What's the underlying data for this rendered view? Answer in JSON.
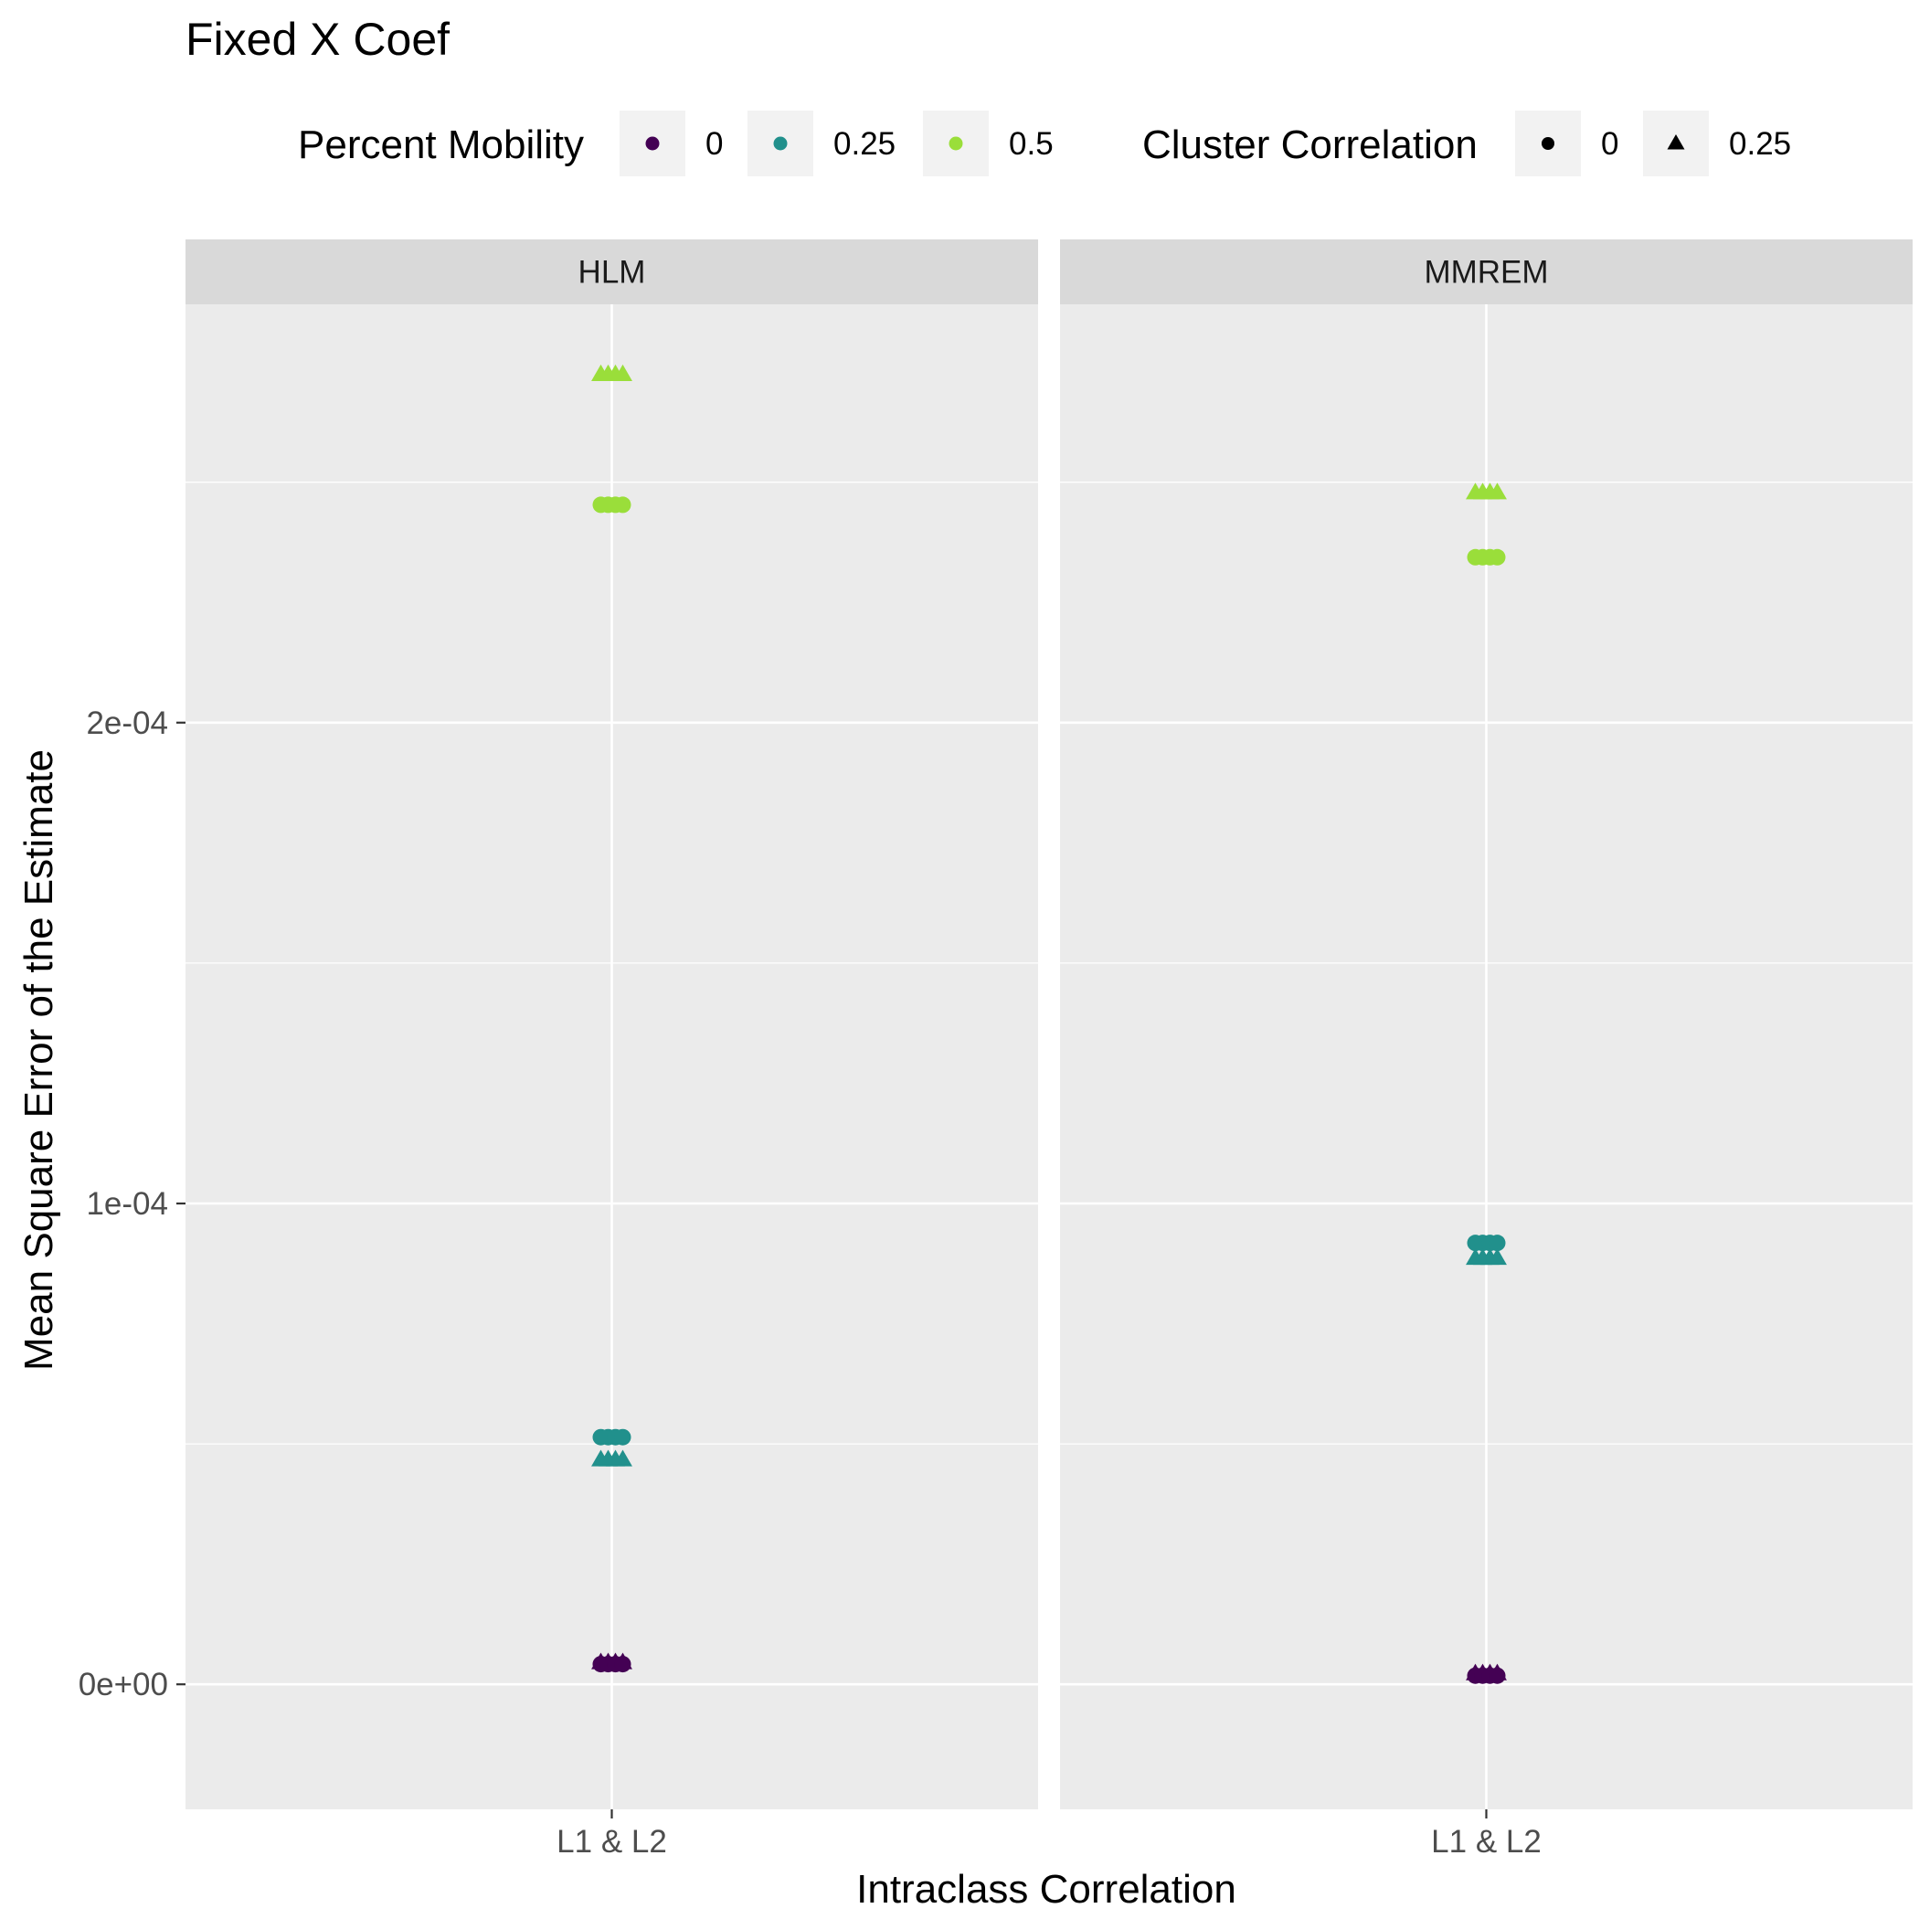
{
  "chart_data": {
    "type": "scatter",
    "title": "Fixed X Coef",
    "xlabel": "Intraclass Correlation",
    "ylabel": "Mean Square Error of the Estimate",
    "ylim": [
      -2.6e-05,
      0.000287
    ],
    "y_ticks": [
      0,
      0.0001,
      0.0002
    ],
    "y_tick_labels": [
      "0e+00",
      "1e-04",
      "2e-04"
    ],
    "categories": [
      "L1 & L2"
    ],
    "grid": true,
    "legend_position": "top",
    "panels": [
      {
        "name": "HLM",
        "points": [
          {
            "x": "L1 & L2",
            "y": 4.5e-06,
            "mobility": "0",
            "cluster": "0.25"
          },
          {
            "x": "L1 & L2",
            "y": 4.2e-06,
            "mobility": "0",
            "cluster": "0"
          },
          {
            "x": "L1 & L2",
            "y": 5.14e-05,
            "mobility": "0.25",
            "cluster": "0"
          },
          {
            "x": "L1 & L2",
            "y": 4.67e-05,
            "mobility": "0.25",
            "cluster": "0.25"
          },
          {
            "x": "L1 & L2",
            "y": 0.0002453,
            "mobility": "0.5",
            "cluster": "0"
          },
          {
            "x": "L1 & L2",
            "y": 0.0002724,
            "mobility": "0.5",
            "cluster": "0.25"
          }
        ]
      },
      {
        "name": "MMREM",
        "points": [
          {
            "x": "L1 & L2",
            "y": 2.2e-06,
            "mobility": "0",
            "cluster": "0.25"
          },
          {
            "x": "L1 & L2",
            "y": 1.8e-06,
            "mobility": "0",
            "cluster": "0"
          },
          {
            "x": "L1 & L2",
            "y": 9.18e-05,
            "mobility": "0.25",
            "cluster": "0"
          },
          {
            "x": "L1 & L2",
            "y": 8.86e-05,
            "mobility": "0.25",
            "cluster": "0.25"
          },
          {
            "x": "L1 & L2",
            "y": 0.0002344,
            "mobility": "0.5",
            "cluster": "0"
          },
          {
            "x": "L1 & L2",
            "y": 0.0002478,
            "mobility": "0.5",
            "cluster": "0.25"
          }
        ]
      }
    ],
    "legends": [
      {
        "title": "Percent Mobility",
        "kind": "color",
        "entries": [
          {
            "label": "0",
            "color": "#440154"
          },
          {
            "label": "0.25",
            "color": "#21908C"
          },
          {
            "label": "0.5",
            "color": "#9ADE3A"
          }
        ]
      },
      {
        "title": "Cluster Correlation",
        "kind": "shape",
        "entries": [
          {
            "label": "0",
            "shape": "circle"
          },
          {
            "label": "0.25",
            "shape": "triangle"
          }
        ]
      }
    ],
    "colors": {
      "0": "#440154",
      "0.25": "#21908C",
      "0.5": "#9ADE3A"
    }
  }
}
